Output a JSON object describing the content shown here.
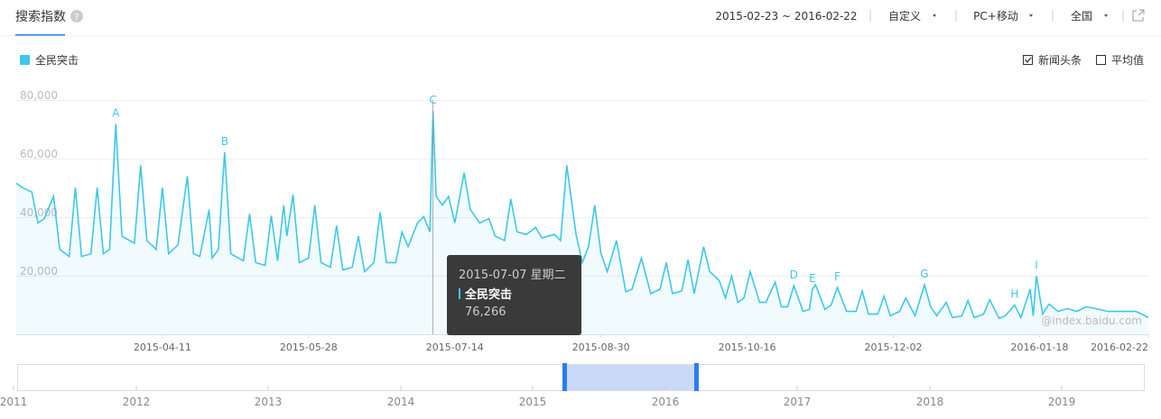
{
  "header": {
    "title": "搜索指数",
    "date_range": "2015-02-23 ~ 2016-02-22",
    "mode": "自定义",
    "device": "PC+移动",
    "region": "全国"
  },
  "options": {
    "news": "新闻头条",
    "news_checked": true,
    "average": "平均值",
    "average_checked": false
  },
  "watermark": "@index.baidu.com",
  "tooltip": {
    "title": "2015-07-07 星期二",
    "series": "全民突击",
    "value": "76,266"
  },
  "navigator": {
    "years": [
      "2011",
      "2012",
      "2013",
      "2014",
      "2015",
      "2016",
      "2017",
      "2018",
      "2019"
    ]
  },
  "chart_data": {
    "type": "line",
    "x": [
      "2015-02-23",
      "2015-02-25",
      "2015-02-28",
      "2015-03-02",
      "2015-03-04",
      "2015-03-07",
      "2015-03-09",
      "2015-03-12",
      "2015-03-14",
      "2015-03-16",
      "2015-03-19",
      "2015-03-21",
      "2015-03-23",
      "2015-03-25",
      "2015-03-27",
      "2015-03-29",
      "2015-04-02",
      "2015-04-04",
      "2015-04-06",
      "2015-04-09",
      "2015-04-11",
      "2015-04-13",
      "2015-04-16",
      "2015-04-19",
      "2015-04-21",
      "2015-04-23",
      "2015-04-26",
      "2015-04-27",
      "2015-04-29",
      "2015-05-01",
      "2015-05-03",
      "2015-05-07",
      "2015-05-09",
      "2015-05-11",
      "2015-05-14",
      "2015-05-16",
      "2015-05-18",
      "2015-05-20",
      "2015-05-21",
      "2015-05-23",
      "2015-05-25",
      "2015-05-28",
      "2015-05-30",
      "2015-06-01",
      "2015-06-04",
      "2015-06-06",
      "2015-06-08",
      "2015-06-11",
      "2015-06-13",
      "2015-06-15",
      "2015-06-18",
      "2015-06-20",
      "2015-06-22",
      "2015-06-25",
      "2015-06-27",
      "2015-06-29",
      "2015-07-02",
      "2015-07-04",
      "2015-07-06",
      "2015-07-07",
      "2015-07-08",
      "2015-07-10",
      "2015-07-12",
      "2015-07-14",
      "2015-07-17",
      "2015-07-19",
      "2015-07-22",
      "2015-07-25",
      "2015-07-27",
      "2015-07-30",
      "2015-08-01",
      "2015-08-03",
      "2015-08-06",
      "2015-08-09",
      "2015-08-11",
      "2015-08-15",
      "2015-08-17",
      "2015-08-19",
      "2015-08-22",
      "2015-08-24",
      "2015-08-26",
      "2015-08-28",
      "2015-08-30",
      "2015-09-01",
      "2015-09-04",
      "2015-09-07",
      "2015-09-09",
      "2015-09-12",
      "2015-09-15",
      "2015-09-18",
      "2015-09-20",
      "2015-09-22",
      "2015-09-25",
      "2015-09-27",
      "2015-09-29",
      "2015-10-02",
      "2015-10-04",
      "2015-10-07",
      "2015-10-09",
      "2015-10-11",
      "2015-10-13",
      "2015-10-15",
      "2015-10-17",
      "2015-10-20",
      "2015-10-22",
      "2015-10-25",
      "2015-10-27",
      "2015-10-29",
      "2015-10-31",
      "2015-11-03",
      "2015-11-05",
      "2015-11-06",
      "2015-11-07",
      "2015-11-10",
      "2015-11-12",
      "2015-11-14",
      "2015-11-17",
      "2015-11-20",
      "2015-11-22",
      "2015-11-24",
      "2015-11-27",
      "2015-11-29",
      "2015-12-01",
      "2015-12-04",
      "2015-12-06",
      "2015-12-09",
      "2015-12-12",
      "2015-12-14",
      "2015-12-16",
      "2015-12-19",
      "2015-12-21",
      "2015-12-24",
      "2015-12-26",
      "2015-12-28",
      "2015-12-31",
      "2016-01-02",
      "2016-01-05",
      "2016-01-07",
      "2016-01-10",
      "2016-01-12",
      "2016-01-15",
      "2016-01-16",
      "2016-01-17",
      "2016-01-19",
      "2016-01-21",
      "2016-01-24",
      "2016-01-27",
      "2016-01-30",
      "2016-02-02",
      "2016-02-05",
      "2016-02-09",
      "2016-02-14",
      "2016-02-18",
      "2016-02-21",
      "2016-02-22"
    ],
    "series": [
      {
        "name": "全民突击",
        "color": "#3ec7eb",
        "values": [
          51600,
          50100,
          48600,
          38000,
          39500,
          47100,
          29000,
          26600,
          50100,
          26600,
          27500,
          50100,
          27500,
          29000,
          71800,
          33500,
          31100,
          57700,
          32000,
          29000,
          50100,
          27500,
          30500,
          54000,
          27500,
          26600,
          42600,
          26000,
          29000,
          62200,
          27500,
          25100,
          41100,
          24500,
          23500,
          40500,
          25100,
          44100,
          33500,
          47700,
          24500,
          26000,
          44100,
          24500,
          22900,
          37100,
          22000,
          22900,
          33500,
          21400,
          24500,
          41700,
          24500,
          24500,
          35000,
          29900,
          38000,
          40200,
          35000,
          76266,
          47100,
          44100,
          47100,
          38000,
          55200,
          42600,
          38000,
          39500,
          33500,
          32000,
          46200,
          35000,
          34100,
          36500,
          32900,
          34100,
          32000,
          57700,
          34100,
          24500,
          29900,
          44100,
          27500,
          21400,
          32000,
          14500,
          15400,
          26000,
          13900,
          15400,
          24500,
          13900,
          14800,
          25400,
          13900,
          29900,
          21400,
          18400,
          12400,
          19900,
          10900,
          12400,
          21400,
          10900,
          10900,
          17800,
          9400,
          9400,
          16600,
          7800,
          8500,
          15400,
          16900,
          8500,
          10000,
          16000,
          7800,
          7800,
          14800,
          6900,
          6900,
          13000,
          6300,
          7800,
          12400,
          6300,
          16900,
          9400,
          6300,
          10900,
          5700,
          6300,
          11500,
          5700,
          6900,
          11800,
          5400,
          6300,
          10000,
          5700,
          15400,
          6300,
          19900,
          6900,
          10300,
          7800,
          8800,
          7800,
          9400,
          8800,
          7800,
          7800,
          7800,
          6300,
          5700
        ]
      }
    ],
    "xlim": [
      "2015-02-23",
      "2016-02-22"
    ],
    "xticks": [
      "2015-04-11",
      "2015-05-28",
      "2015-07-14",
      "2015-08-30",
      "2015-10-16",
      "2015-12-02",
      "2016-01-18",
      "2016-02-22"
    ],
    "ylim": [
      0,
      80000
    ],
    "yticks": [
      {
        "value": 20000,
        "label": "20,000"
      },
      {
        "value": 40000,
        "label": "40,000"
      },
      {
        "value": 60000,
        "label": "60,000"
      },
      {
        "value": 80000,
        "label": "80,000"
      }
    ],
    "grid": true,
    "legend": "top-left",
    "annotations": [
      {
        "label": "A",
        "x": "2015-03-27"
      },
      {
        "label": "B",
        "x": "2015-05-01"
      },
      {
        "label": "C",
        "x": "2015-07-07"
      },
      {
        "label": "D",
        "x": "2015-10-31"
      },
      {
        "label": "E",
        "x": "2015-11-06"
      },
      {
        "label": "F",
        "x": "2015-11-14"
      },
      {
        "label": "G",
        "x": "2015-12-12"
      },
      {
        "label": "H",
        "x": "2016-01-10"
      },
      {
        "label": "I",
        "x": "2016-01-17"
      }
    ]
  }
}
